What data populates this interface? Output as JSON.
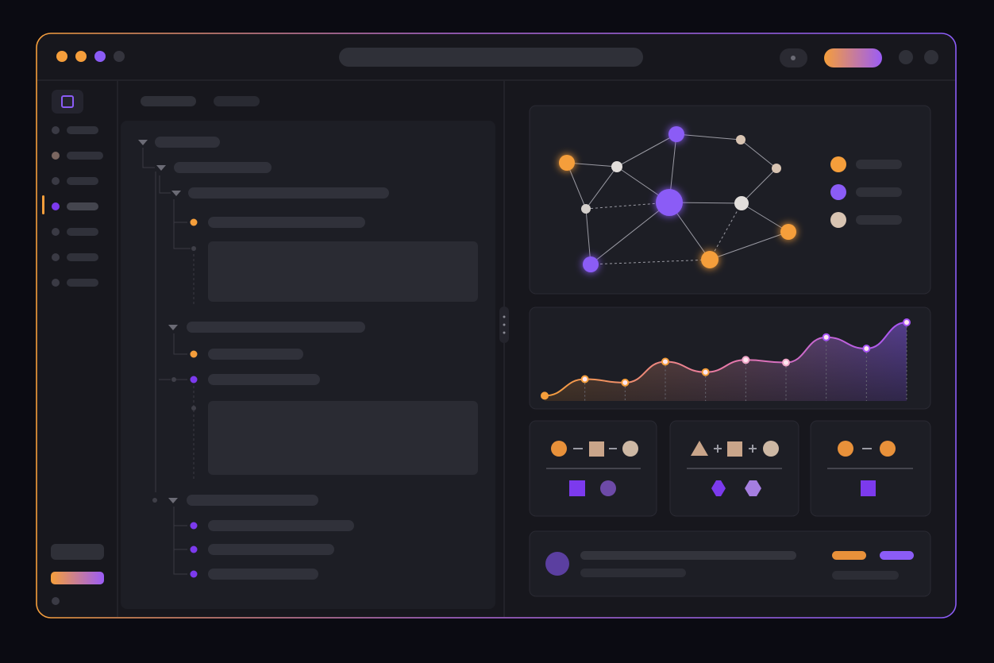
{
  "chart_data": {
    "type": "area",
    "values": [
      6,
      25,
      21,
      45,
      33,
      47,
      44,
      73,
      60,
      90
    ],
    "ylim": [
      0,
      100
    ],
    "color": "#a855f7"
  }
}
